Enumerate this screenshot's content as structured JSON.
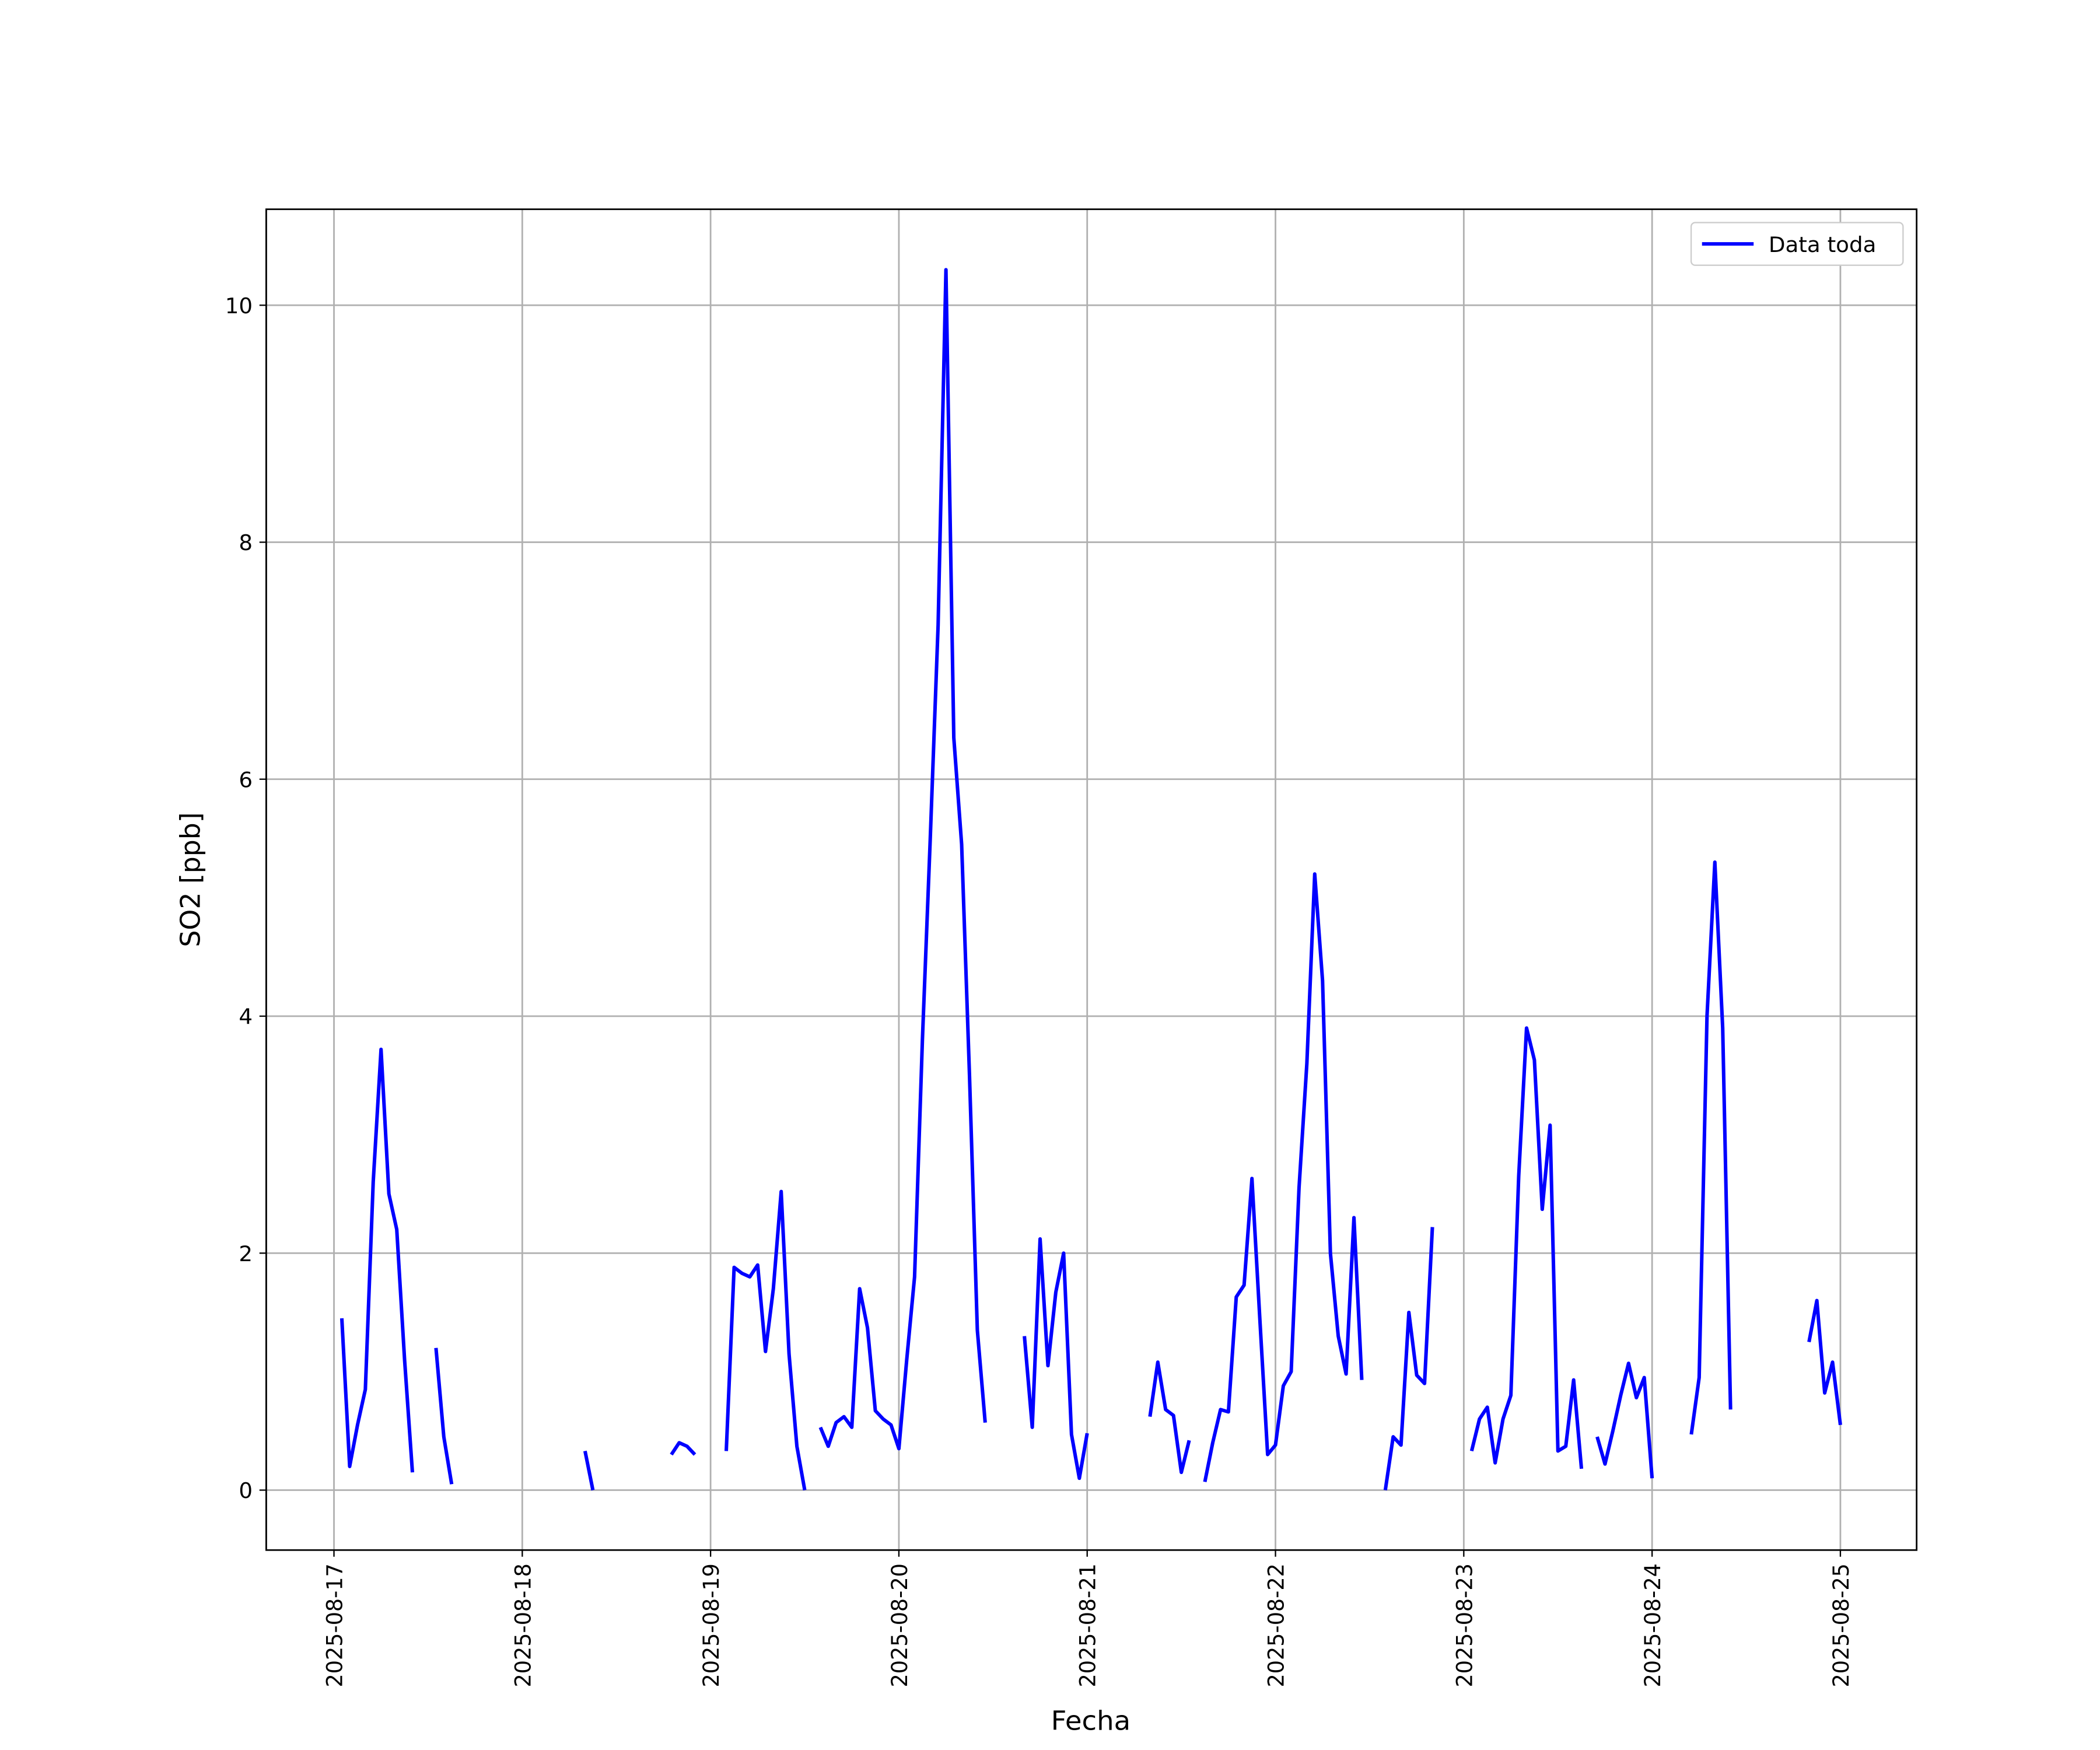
{
  "chart_data": {
    "type": "line",
    "xlabel": "Fecha",
    "ylabel": "SO2 [ppb]",
    "xlim": [
      "2025-08-16 15:22",
      "2025-08-25 09:43"
    ],
    "ylim": [
      -0.506,
      10.81
    ],
    "xticks": [
      {
        "value": "2025-08-17 00:00",
        "label": "2025-08-17"
      },
      {
        "value": "2025-08-18 00:00",
        "label": "2025-08-18"
      },
      {
        "value": "2025-08-19 00:00",
        "label": "2025-08-19"
      },
      {
        "value": "2025-08-20 00:00",
        "label": "2025-08-20"
      },
      {
        "value": "2025-08-21 00:00",
        "label": "2025-08-21"
      },
      {
        "value": "2025-08-22 00:00",
        "label": "2025-08-22"
      },
      {
        "value": "2025-08-23 00:00",
        "label": "2025-08-23"
      },
      {
        "value": "2025-08-24 00:00",
        "label": "2025-08-24"
      },
      {
        "value": "2025-08-25 00:00",
        "label": "2025-08-25"
      }
    ],
    "yticks": [
      0,
      2,
      4,
      6,
      8,
      10
    ],
    "grid": true,
    "legend": "upper right",
    "x": [
      "2025-08-17 01:00",
      "2025-08-17 02:00",
      "2025-08-17 03:00",
      "2025-08-17 04:00",
      "2025-08-17 05:00",
      "2025-08-17 06:00",
      "2025-08-17 07:00",
      "2025-08-17 08:00",
      "2025-08-17 09:00",
      "2025-08-17 10:00",
      "2025-08-17 11:00",
      "2025-08-17 13:00",
      "2025-08-17 14:00",
      "2025-08-17 15:00",
      "2025-08-17 16:00",
      "2025-08-18 08:00",
      "2025-08-18 09:00",
      "2025-08-18 10:00",
      "2025-08-18 19:00",
      "2025-08-18 20:00",
      "2025-08-18 21:00",
      "2025-08-18 22:00",
      "2025-08-18 23:00",
      "2025-08-19 02:00",
      "2025-08-19 03:00",
      "2025-08-19 04:00",
      "2025-08-19 05:00",
      "2025-08-19 06:00",
      "2025-08-19 07:00",
      "2025-08-19 08:00",
      "2025-08-19 09:00",
      "2025-08-19 10:00",
      "2025-08-19 11:00",
      "2025-08-19 12:00",
      "2025-08-19 13:00",
      "2025-08-19 14:00",
      "2025-08-19 15:00",
      "2025-08-19 16:00",
      "2025-08-19 17:00",
      "2025-08-19 18:00",
      "2025-08-19 19:00",
      "2025-08-19 20:00",
      "2025-08-19 21:00",
      "2025-08-19 22:00",
      "2025-08-19 23:00",
      "2025-08-20 00:00",
      "2025-08-20 01:00",
      "2025-08-20 02:00",
      "2025-08-20 03:00",
      "2025-08-20 04:00",
      "2025-08-20 05:00",
      "2025-08-20 06:00",
      "2025-08-20 07:00",
      "2025-08-20 08:00",
      "2025-08-20 09:00",
      "2025-08-20 10:00",
      "2025-08-20 11:00",
      "2025-08-20 12:00",
      "2025-08-20 16:00",
      "2025-08-20 17:00",
      "2025-08-20 18:00",
      "2025-08-20 19:00",
      "2025-08-20 20:00",
      "2025-08-20 21:00",
      "2025-08-20 22:00",
      "2025-08-20 23:00",
      "2025-08-21 00:00",
      "2025-08-21 01:00",
      "2025-08-21 08:00",
      "2025-08-21 09:00",
      "2025-08-21 10:00",
      "2025-08-21 11:00",
      "2025-08-21 12:00",
      "2025-08-21 13:00",
      "2025-08-21 14:00",
      "2025-08-21 15:00",
      "2025-08-21 16:00",
      "2025-08-21 17:00",
      "2025-08-21 18:00",
      "2025-08-21 19:00",
      "2025-08-21 20:00",
      "2025-08-21 21:00",
      "2025-08-21 22:00",
      "2025-08-21 23:00",
      "2025-08-22 00:00",
      "2025-08-22 01:00",
      "2025-08-22 02:00",
      "2025-08-22 03:00",
      "2025-08-22 04:00",
      "2025-08-22 05:00",
      "2025-08-22 06:00",
      "2025-08-22 07:00",
      "2025-08-22 08:00",
      "2025-08-22 09:00",
      "2025-08-22 10:00",
      "2025-08-22 11:00",
      "2025-08-22 12:00",
      "2025-08-22 14:00",
      "2025-08-22 15:00",
      "2025-08-22 16:00",
      "2025-08-22 17:00",
      "2025-08-22 18:00",
      "2025-08-22 19:00",
      "2025-08-22 20:00",
      "2025-08-22 21:00",
      "2025-08-23 01:00",
      "2025-08-23 02:00",
      "2025-08-23 03:00",
      "2025-08-23 04:00",
      "2025-08-23 05:00",
      "2025-08-23 06:00",
      "2025-08-23 07:00",
      "2025-08-23 08:00",
      "2025-08-23 09:00",
      "2025-08-23 10:00",
      "2025-08-23 11:00",
      "2025-08-23 12:00",
      "2025-08-23 13:00",
      "2025-08-23 14:00",
      "2025-08-23 15:00",
      "2025-08-23 16:00",
      "2025-08-23 17:00",
      "2025-08-23 18:00",
      "2025-08-23 19:00",
      "2025-08-23 20:00",
      "2025-08-23 21:00",
      "2025-08-23 22:00",
      "2025-08-23 23:00",
      "2025-08-24 00:00",
      "2025-08-24 01:00",
      "2025-08-24 05:00",
      "2025-08-24 06:00",
      "2025-08-24 07:00",
      "2025-08-24 08:00",
      "2025-08-24 09:00",
      "2025-08-24 10:00",
      "2025-08-24 11:00",
      "2025-08-24 20:00",
      "2025-08-24 21:00",
      "2025-08-24 22:00",
      "2025-08-24 23:00",
      "2025-08-25 00:00"
    ],
    "series": [
      {
        "name": "Data toda",
        "color": "#0000ff",
        "values": [
          1.45,
          0.2,
          0.55,
          0.85,
          2.6,
          3.72,
          2.5,
          2.2,
          1.1,
          0.15,
          null,
          1.2,
          0.45,
          0.05,
          null,
          0.33,
          0.0,
          null,
          0.3,
          0.4,
          0.37,
          0.3,
          null,
          0.33,
          1.88,
          1.83,
          1.8,
          1.9,
          1.17,
          1.7,
          2.52,
          1.15,
          0.37,
          0.0,
          null,
          0.53,
          0.37,
          0.57,
          0.62,
          0.53,
          1.7,
          1.37,
          0.67,
          0.6,
          0.55,
          0.35,
          1.1,
          1.8,
          3.8,
          5.5,
          7.3,
          10.3,
          6.35,
          5.45,
          3.5,
          1.35,
          0.57,
          null,
          1.3,
          0.53,
          2.12,
          1.05,
          1.67,
          2.0,
          0.47,
          0.1,
          0.48,
          null,
          0.62,
          1.08,
          0.68,
          0.63,
          0.15,
          0.42,
          null,
          0.07,
          0.4,
          0.68,
          0.66,
          1.63,
          1.73,
          2.63,
          1.45,
          0.3,
          0.38,
          0.88,
          1.0,
          2.55,
          3.6,
          5.2,
          4.3,
          2.0,
          1.3,
          0.98,
          2.3,
          0.93,
          null,
          0.0,
          0.45,
          0.38,
          1.5,
          0.97,
          0.9,
          2.22,
          null,
          0.33,
          0.6,
          0.7,
          0.23,
          0.6,
          0.8,
          2.65,
          3.9,
          3.63,
          2.37,
          3.08,
          0.33,
          0.37,
          0.93,
          0.18,
          null,
          0.45,
          0.22,
          0.5,
          0.8,
          1.07,
          0.78,
          0.95,
          0.1,
          null,
          0.47,
          0.95,
          4.0,
          5.3,
          3.9,
          0.68,
          null,
          1.25,
          1.6,
          0.82,
          1.08,
          0.55
        ]
      }
    ]
  }
}
